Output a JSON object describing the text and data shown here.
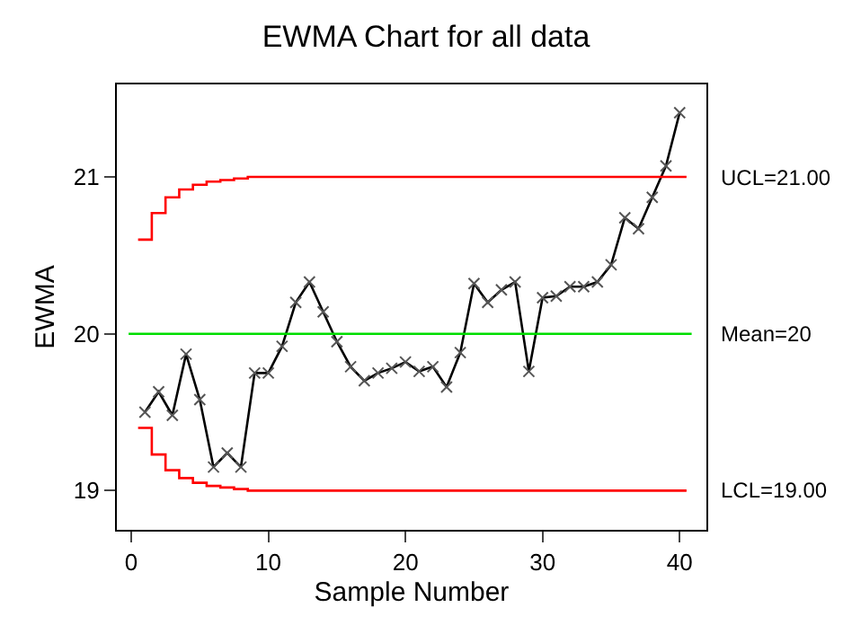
{
  "chart_data": {
    "type": "line",
    "title": "EWMA Chart for all data",
    "xlabel": "Sample Number",
    "ylabel": "EWMA",
    "xlim": [
      -1.05,
      41.95
    ],
    "xticks": [
      0,
      10,
      20,
      30,
      40
    ],
    "ylim": [
      18.75,
      21.59
    ],
    "yticks": [
      19,
      20,
      21
    ],
    "grid": false,
    "legend": false,
    "series": [
      {
        "marker": "cross",
        "color": "#000000",
        "x": [
          1,
          2,
          3,
          4,
          5,
          6,
          7,
          8,
          9,
          10,
          11,
          12,
          13,
          14,
          15,
          16,
          17,
          18,
          19,
          20,
          21,
          22,
          23,
          24,
          25,
          26,
          27,
          28,
          29,
          30,
          31,
          32,
          33,
          34,
          35,
          36,
          37,
          38,
          39,
          40
        ],
        "values": [
          19.5,
          19.63,
          19.48,
          19.87,
          19.58,
          19.15,
          19.24,
          19.15,
          19.75,
          19.75,
          19.92,
          20.2,
          20.33,
          20.14,
          19.95,
          19.79,
          19.7,
          19.75,
          19.78,
          19.82,
          19.76,
          19.79,
          19.66,
          19.88,
          20.32,
          20.2,
          20.28,
          20.33,
          19.76,
          20.23,
          20.24,
          20.3,
          20.3,
          20.33,
          20.44,
          20.74,
          20.67,
          20.87,
          21.07,
          21.41
        ]
      },
      {
        "type": "step",
        "name": "UCL=21.00",
        "color": "#ff0000",
        "x": [
          0.5,
          1.5,
          2.5,
          3.5,
          4.5,
          5.5,
          6.5,
          7.5,
          8.5,
          9.5,
          10.5,
          40.5
        ],
        "values": [
          20.6,
          20.77,
          20.87,
          20.92,
          20.95,
          20.97,
          20.98,
          20.99,
          21,
          21,
          21,
          21
        ]
      },
      {
        "type": "step",
        "name": "LCL=19.00",
        "color": "#ff0000",
        "x": [
          0.5,
          1.5,
          2.5,
          3.5,
          4.5,
          5.5,
          6.5,
          7.5,
          8.5,
          9.5,
          10.5,
          40.5
        ],
        "values": [
          19.4,
          19.23,
          19.13,
          19.08,
          19.05,
          19.03,
          19.02,
          19.01,
          19,
          19,
          19,
          19
        ]
      }
    ],
    "ref_lines": [
      {
        "axis": "y",
        "value": 20,
        "label": "Mean=20",
        "color": "#00dd00"
      }
    ]
  }
}
